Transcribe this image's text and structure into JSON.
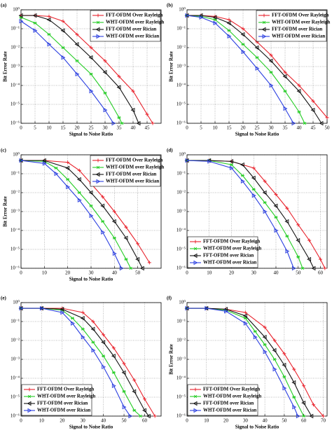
{
  "chart_data": [
    {
      "type": "line",
      "label": "(a)",
      "xlabel": "Signal to Noise Ratio",
      "ylabel": "Bit Error Rate",
      "yscale": "log",
      "grid": true,
      "legend": "upper right",
      "xlim": [
        0,
        50
      ],
      "xticks": [
        0,
        5,
        10,
        15,
        20,
        25,
        30,
        35,
        40,
        45
      ],
      "ylim": [
        1e-06,
        1
      ],
      "yticks": [
        {
          "value": 1,
          "label": "10⁰"
        },
        {
          "value": 0.1,
          "label": "10⁻¹"
        },
        {
          "value": 0.01,
          "label": "10⁻²"
        },
        {
          "value": 0.001,
          "label": "10⁻³"
        },
        {
          "value": 0.0001,
          "label": "10⁻⁴"
        },
        {
          "value": 1e-05,
          "label": "10⁻⁵"
        },
        {
          "value": 1e-06,
          "label": "10⁻⁶"
        }
      ],
      "series": [
        {
          "name": "FFT-OFDM Over Rayleigh",
          "color": "#e8202a",
          "x": [
            0,
            5,
            10,
            15,
            20,
            25,
            30,
            35,
            40,
            45,
            47
          ],
          "values": [
            0.5,
            0.5,
            0.45,
            0.25,
            0.05,
            0.01,
            0.002,
            0.0003,
            5e-05,
            3e-06,
            1e-06
          ]
        },
        {
          "name": "WHT-OFDM over Rayleigh",
          "color": "#22cc22",
          "x": [
            0,
            5,
            10,
            15,
            20,
            25,
            30,
            35,
            36
          ],
          "values": [
            0.4,
            0.2,
            0.05,
            0.01,
            0.002,
            0.0004,
            4e-05,
            2e-06,
            1e-06
          ]
        },
        {
          "name": "FFT-OFDM over Rician",
          "color": "#111111",
          "x": [
            0,
            5,
            10,
            15,
            20,
            25,
            30,
            35,
            40,
            42
          ],
          "values": [
            0.5,
            0.5,
            0.3,
            0.08,
            0.015,
            0.003,
            0.0005,
            8e-05,
            5e-06,
            1e-06
          ]
        },
        {
          "name": "WHT-OFDM over Rician",
          "color": "#2a3ee0",
          "x": [
            0,
            5,
            10,
            15,
            20,
            25,
            30,
            33
          ],
          "values": [
            0.25,
            0.08,
            0.015,
            0.003,
            0.0004,
            5e-05,
            5e-06,
            1e-06
          ]
        }
      ]
    },
    {
      "type": "line",
      "label": "(b)",
      "xlabel": "Signal to Noise Ratio",
      "ylabel": "Bit Error Rate",
      "yscale": "log",
      "grid": true,
      "legend": "upper right",
      "xlim": [
        0,
        50
      ],
      "xticks": [
        0,
        5,
        10,
        15,
        20,
        25,
        30,
        35,
        40,
        45,
        50
      ],
      "ylim": [
        1e-06,
        1
      ],
      "yticks": [
        {
          "value": 1,
          "label": "10⁰"
        },
        {
          "value": 0.1,
          "label": "10⁻¹"
        },
        {
          "value": 0.01,
          "label": "10⁻²"
        },
        {
          "value": 0.001,
          "label": "10⁻³"
        },
        {
          "value": 0.0001,
          "label": "10⁻⁴"
        },
        {
          "value": 1e-05,
          "label": "10⁻⁵"
        },
        {
          "value": 1e-06,
          "label": "10⁻⁶"
        }
      ],
      "series": [
        {
          "name": "FFT-OFDM Over Rayleigh",
          "color": "#e8202a",
          "x": [
            0,
            5,
            10,
            15,
            20,
            25,
            30,
            35,
            40,
            45,
            50
          ],
          "values": [
            0.5,
            0.5,
            0.45,
            0.3,
            0.1,
            0.02,
            0.004,
            0.0005,
            0.0001,
            1.5e-05,
            2e-06
          ]
        },
        {
          "name": "WHT-OFDM over Rayleigh",
          "color": "#22cc22",
          "x": [
            0,
            5,
            10,
            15,
            20,
            25,
            30,
            35,
            40,
            42
          ],
          "values": [
            0.5,
            0.45,
            0.3,
            0.08,
            0.015,
            0.003,
            0.0005,
            5e-05,
            4e-06,
            1e-06
          ]
        },
        {
          "name": "FFT-OFDM over Rician",
          "color": "#111111",
          "x": [
            0,
            5,
            10,
            15,
            20,
            25,
            30,
            35,
            40,
            45,
            48
          ],
          "values": [
            0.5,
            0.5,
            0.4,
            0.2,
            0.05,
            0.01,
            0.002,
            0.0003,
            5e-05,
            5e-06,
            1e-06
          ]
        },
        {
          "name": "WHT-OFDM over Rician",
          "color": "#2a3ee0",
          "x": [
            0,
            5,
            10,
            15,
            20,
            25,
            30,
            35,
            38
          ],
          "values": [
            0.5,
            0.4,
            0.2,
            0.04,
            0.006,
            0.0008,
            0.0001,
            6e-06,
            1e-06
          ]
        }
      ]
    },
    {
      "type": "line",
      "label": "(c)",
      "xlabel": "Signal to Noise Ratio",
      "ylabel": "Bit Error Rate",
      "yscale": "log",
      "grid": true,
      "legend": "upper right",
      "xlim": [
        0,
        60
      ],
      "xticks": [
        0,
        10,
        20,
        30,
        40,
        50
      ],
      "ylim": [
        1e-06,
        1
      ],
      "yticks": [
        {
          "value": 1,
          "label": "10⁰"
        },
        {
          "value": 0.1,
          "label": "10⁻¹"
        },
        {
          "value": 0.01,
          "label": "10⁻²"
        },
        {
          "value": 0.001,
          "label": "10⁻³"
        },
        {
          "value": 0.0001,
          "label": "10⁻⁴"
        },
        {
          "value": 1e-05,
          "label": "10⁻⁵"
        },
        {
          "value": 1e-06,
          "label": "10⁻⁶"
        }
      ],
      "series": [
        {
          "name": "FFT-OFDM Over Rayleigh",
          "color": "#e8202a",
          "x": [
            0,
            10,
            20,
            25,
            30,
            35,
            40,
            45,
            50,
            55
          ],
          "values": [
            0.5,
            0.5,
            0.4,
            0.15,
            0.03,
            0.006,
            0.001,
            0.00015,
            2e-05,
            2e-06
          ]
        },
        {
          "name": "WHT-OFDM over Rayleigh",
          "color": "#22cc22",
          "x": [
            0,
            10,
            15,
            20,
            25,
            30,
            35,
            40,
            45,
            47
          ],
          "values": [
            0.5,
            0.45,
            0.2,
            0.05,
            0.01,
            0.002,
            0.0003,
            4e-05,
            3e-06,
            1e-06
          ]
        },
        {
          "name": "FFT-OFDM over Rician",
          "color": "#111111",
          "x": [
            0,
            10,
            20,
            25,
            30,
            35,
            40,
            45,
            50,
            52
          ],
          "values": [
            0.5,
            0.5,
            0.2,
            0.05,
            0.01,
            0.002,
            0.0003,
            4e-05,
            3e-06,
            1e-06
          ]
        },
        {
          "name": "WHT-OFDM over Rician",
          "color": "#2a3ee0",
          "x": [
            0,
            10,
            15,
            20,
            25,
            30,
            35,
            40,
            43
          ],
          "values": [
            0.5,
            0.35,
            0.1,
            0.02,
            0.004,
            0.0006,
            8e-05,
            6e-06,
            1e-06
          ]
        }
      ]
    },
    {
      "type": "line",
      "label": "(d)",
      "yscale": "log",
      "grid": true,
      "legend": "lower left",
      "xlim": [
        0,
        63
      ],
      "xticks": [
        0,
        10,
        20,
        30,
        40,
        50,
        60
      ],
      "ylim": [
        1e-06,
        1
      ],
      "yticks": [
        {
          "value": 1,
          "label": "10⁰"
        },
        {
          "value": 0.1,
          "label": "10⁻¹"
        },
        {
          "value": 0.01,
          "label": "10⁻²"
        },
        {
          "value": 0.001,
          "label": "10⁻³"
        },
        {
          "value": 0.0001,
          "label": "10⁻⁴"
        },
        {
          "value": 1e-05,
          "label": "10⁻⁵"
        },
        {
          "value": 1e-06,
          "label": "10⁻⁶"
        }
      ],
      "series": [
        {
          "name": "FFT-OFDM Over Rayleigh",
          "color": "#e8202a",
          "x": [
            0,
            10,
            20,
            30,
            35,
            40,
            45,
            50,
            55,
            60,
            62
          ],
          "values": [
            0.5,
            0.5,
            0.45,
            0.2,
            0.04,
            0.008,
            0.0015,
            0.0002,
            3e-05,
            3e-06,
            1e-06
          ]
        },
        {
          "name": "WHT-OFDM over Rayleigh",
          "color": "#22cc22",
          "x": [
            0,
            10,
            20,
            25,
            30,
            35,
            40,
            45,
            50,
            52
          ],
          "values": [
            0.5,
            0.5,
            0.3,
            0.08,
            0.015,
            0.003,
            0.0005,
            5e-05,
            4e-06,
            1e-06
          ]
        },
        {
          "name": "FFT-OFDM over Rician",
          "color": "#111111",
          "x": [
            0,
            10,
            20,
            25,
            30,
            35,
            40,
            45,
            50,
            55,
            57
          ],
          "values": [
            0.5,
            0.5,
            0.45,
            0.3,
            0.06,
            0.01,
            0.002,
            0.0003,
            3e-05,
            3e-06,
            1e-06
          ]
        },
        {
          "name": "WHT-OFDM over Rician",
          "color": "#2a3ee0",
          "x": [
            0,
            10,
            20,
            25,
            30,
            35,
            40,
            45,
            48
          ],
          "values": [
            0.5,
            0.45,
            0.2,
            0.04,
            0.007,
            0.001,
            0.0001,
            8e-06,
            1e-06
          ]
        }
      ]
    },
    {
      "type": "line",
      "label": "(e)",
      "xlabel": "Signal to Noise Ratio",
      "yscale": "log",
      "grid": true,
      "legend": "lower left",
      "xlim": [
        0,
        68
      ],
      "xticks": [
        0,
        10,
        20,
        30,
        40,
        50,
        60
      ],
      "ylim": [
        1e-06,
        1
      ],
      "yticks": [
        {
          "value": 1,
          "label": "10⁰"
        },
        {
          "value": 0.1,
          "label": "10⁻¹"
        },
        {
          "value": 0.01,
          "label": "10⁻²"
        },
        {
          "value": 0.001,
          "label": "10⁻³"
        },
        {
          "value": 0.0001,
          "label": "10⁻⁴"
        },
        {
          "value": 1e-05,
          "label": "10⁻⁵"
        },
        {
          "value": 1e-06,
          "label": "10⁻⁶"
        }
      ],
      "series": [
        {
          "name": "FFT-OFDM Over Rayleigh",
          "color": "#e8202a",
          "x": [
            0,
            10,
            20,
            30,
            35,
            40,
            45,
            50,
            55,
            60,
            65
          ],
          "values": [
            0.5,
            0.5,
            0.5,
            0.3,
            0.1,
            0.02,
            0.004,
            0.0006,
            8e-05,
            8e-06,
            1e-06
          ]
        },
        {
          "name": "WHT-OFDM over Rayleigh",
          "color": "#22cc22",
          "x": [
            0,
            10,
            20,
            25,
            30,
            35,
            40,
            45,
            50,
            55,
            58
          ],
          "values": [
            0.5,
            0.5,
            0.4,
            0.15,
            0.04,
            0.008,
            0.0015,
            0.0002,
            2e-05,
            2e-06,
            1e-06
          ]
        },
        {
          "name": "FFT-OFDM over Rician",
          "color": "#111111",
          "x": [
            0,
            10,
            20,
            30,
            35,
            40,
            45,
            50,
            55,
            60,
            62
          ],
          "values": [
            0.5,
            0.5,
            0.45,
            0.15,
            0.04,
            0.008,
            0.0015,
            0.0002,
            2e-05,
            2e-06,
            1e-06
          ]
        },
        {
          "name": "WHT-OFDM over Rician",
          "color": "#2a3ee0",
          "x": [
            0,
            10,
            20,
            25,
            30,
            35,
            40,
            45,
            50,
            53
          ],
          "values": [
            0.5,
            0.5,
            0.3,
            0.08,
            0.015,
            0.003,
            0.0004,
            4e-05,
            3e-06,
            1e-06
          ]
        }
      ]
    },
    {
      "type": "line",
      "label": "(f)",
      "xlabel": "Signal to Noise Ratio",
      "ylabel": "Bit Error Rate",
      "yscale": "log",
      "grid": true,
      "legend": "lower left",
      "xlim": [
        0,
        72
      ],
      "xticks": [
        0,
        10,
        20,
        30,
        40,
        50,
        60,
        70
      ],
      "ylim": [
        1e-06,
        1
      ],
      "yticks": [
        {
          "value": 1,
          "label": "10⁰"
        },
        {
          "value": 0.1,
          "label": "10⁻¹"
        },
        {
          "value": 0.01,
          "label": "10⁻²"
        },
        {
          "value": 0.001,
          "label": "10⁻³"
        },
        {
          "value": 0.0001,
          "label": "10⁻⁴"
        },
        {
          "value": 1e-05,
          "label": "10⁻⁵"
        },
        {
          "value": 1e-06,
          "label": "10⁻⁶"
        }
      ],
      "series": [
        {
          "name": "FFT-OFDM Over Rayleigh",
          "color": "#e8202a",
          "x": [
            0,
            10,
            20,
            30,
            40,
            45,
            50,
            55,
            60,
            65,
            70
          ],
          "values": [
            0.5,
            0.5,
            0.45,
            0.3,
            0.05,
            0.01,
            0.002,
            0.0003,
            4e-05,
            4e-06,
            1e-06
          ]
        },
        {
          "name": "WHT-OFDM over Rayleigh",
          "color": "#22cc22",
          "x": [
            0,
            10,
            20,
            30,
            35,
            40,
            45,
            50,
            55,
            60
          ],
          "values": [
            0.5,
            0.5,
            0.4,
            0.15,
            0.03,
            0.006,
            0.001,
            0.00012,
            1e-05,
            1e-06
          ]
        },
        {
          "name": "FFT-OFDM over Rician",
          "color": "#111111",
          "x": [
            0,
            10,
            20,
            30,
            40,
            45,
            50,
            55,
            60,
            64
          ],
          "values": [
            0.5,
            0.5,
            0.45,
            0.2,
            0.015,
            0.003,
            0.0005,
            6e-05,
            5e-06,
            1e-06
          ]
        },
        {
          "name": "WHT-OFDM over Rician",
          "color": "#2a3ee0",
          "x": [
            0,
            10,
            20,
            30,
            35,
            40,
            45,
            50,
            55,
            57
          ],
          "values": [
            0.5,
            0.5,
            0.35,
            0.08,
            0.015,
            0.0025,
            0.0003,
            3e-05,
            3e-06,
            1e-06
          ]
        }
      ]
    }
  ]
}
